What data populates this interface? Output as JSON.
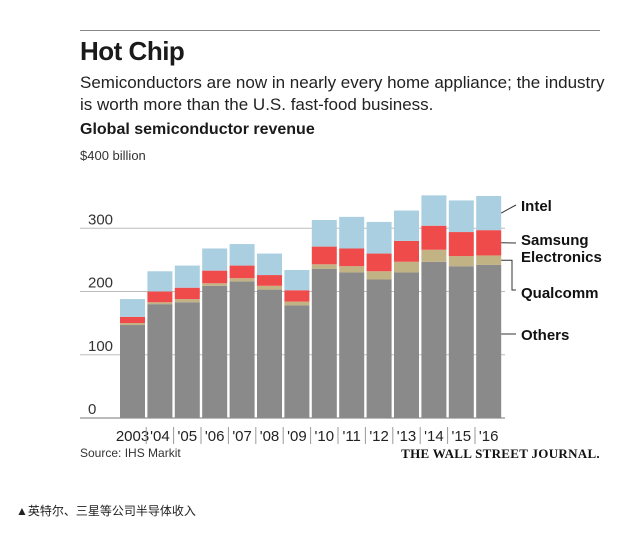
{
  "header": {
    "title": "Hot Chip",
    "subtitle": "Semiconductors are now in nearly every home appliance; the industry is worth more than the U.S. fast-food business.",
    "chart_title": "Global semiconductor revenue",
    "unit_label": "$400 billion"
  },
  "footer": {
    "source": "Source: IHS Markit",
    "brand": "THE WALL STREET JOURNAL.",
    "caption": "▲英特尔、三星等公司半导体收入"
  },
  "colors": {
    "Intel": "#a9cfe0",
    "Samsung": "#f04b4b",
    "Qualcomm": "#c2b385",
    "Others": "#8a8a8a",
    "grid": "#bdbdbd"
  },
  "chart_data": {
    "type": "bar",
    "stacked": true,
    "title": "Global semiconductor revenue",
    "ylabel": "$400 billion",
    "ylim": [
      0,
      400
    ],
    "yticks": [
      0,
      100,
      200,
      300
    ],
    "categories": [
      "2003",
      "'04",
      "'05",
      "'06",
      "'07",
      "'08",
      "'09",
      "'10",
      "'11",
      "'12",
      "'13",
      "'14",
      "'15",
      "'16"
    ],
    "series": [
      {
        "name": "Others",
        "legend": "Others",
        "values": [
          147,
          180,
          183,
          209,
          216,
          203,
          178,
          236,
          230,
          219,
          230,
          247,
          240,
          242
        ]
      },
      {
        "name": "Qualcomm",
        "legend": "Qualcomm",
        "values": [
          3,
          3,
          5,
          4,
          5,
          6,
          6,
          7,
          10,
          13,
          17,
          19,
          16,
          15
        ]
      },
      {
        "name": "Samsung",
        "legend": "Samsung Electronics",
        "values": [
          10,
          17,
          18,
          20,
          20,
          17,
          18,
          28,
          28,
          28,
          33,
          38,
          38,
          40
        ]
      },
      {
        "name": "Intel",
        "legend": "Intel",
        "values": [
          28,
          32,
          35,
          35,
          34,
          34,
          32,
          42,
          50,
          50,
          48,
          48,
          50,
          54
        ]
      }
    ]
  }
}
